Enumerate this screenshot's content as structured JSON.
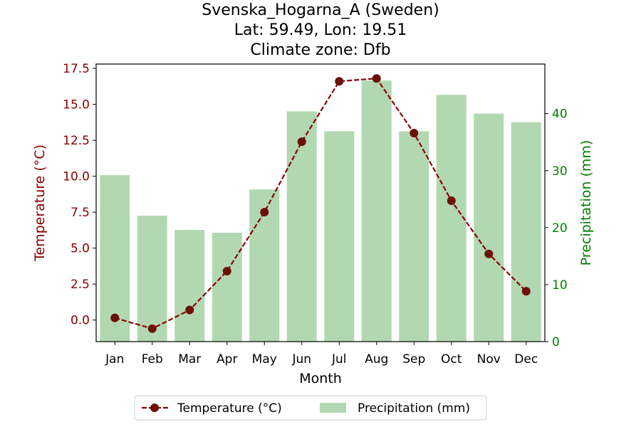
{
  "chart_data": {
    "type": "bar",
    "title_lines": [
      "Svenska_Hogarna_A (Sweden)",
      "Lat: 59.49, Lon: 19.51",
      "Climate zone: Dfb"
    ],
    "xlabel": "Month",
    "ylabel_left": "Temperature (°C)",
    "ylabel_right": "Precipitation (mm)",
    "categories": [
      "Jan",
      "Feb",
      "Mar",
      "Apr",
      "May",
      "Jun",
      "Jul",
      "Aug",
      "Sep",
      "Oct",
      "Nov",
      "Dec"
    ],
    "y_left_range": [
      -1.5,
      17.8
    ],
    "y_left_ticks": [
      "0.0",
      "2.5",
      "5.0",
      "7.5",
      "10.0",
      "12.5",
      "15.0",
      "17.5"
    ],
    "y_right_range": [
      0,
      48.7
    ],
    "y_right_ticks": [
      "0",
      "10",
      "20",
      "30",
      "40"
    ],
    "grid": false,
    "legend_placement": "bottom-center",
    "series": [
      {
        "name": "Temperature (°C)",
        "kind": "line",
        "axis": "left",
        "color": "#8b0000",
        "values": [
          0.15,
          -0.6,
          0.7,
          3.4,
          7.5,
          12.4,
          16.6,
          16.8,
          13.0,
          8.3,
          4.6,
          2.0
        ]
      },
      {
        "name": "Precipitation (mm)",
        "kind": "bar",
        "axis": "right",
        "color": "#b2d8b2",
        "values": [
          29.2,
          22.1,
          19.6,
          19.1,
          26.7,
          40.4,
          36.9,
          45.8,
          36.9,
          43.3,
          40.0,
          38.5
        ]
      }
    ],
    "colors": {
      "temperature_axis": "#8b0000",
      "precip_axis": "#008000",
      "marker_fill": "#6b1005"
    }
  }
}
